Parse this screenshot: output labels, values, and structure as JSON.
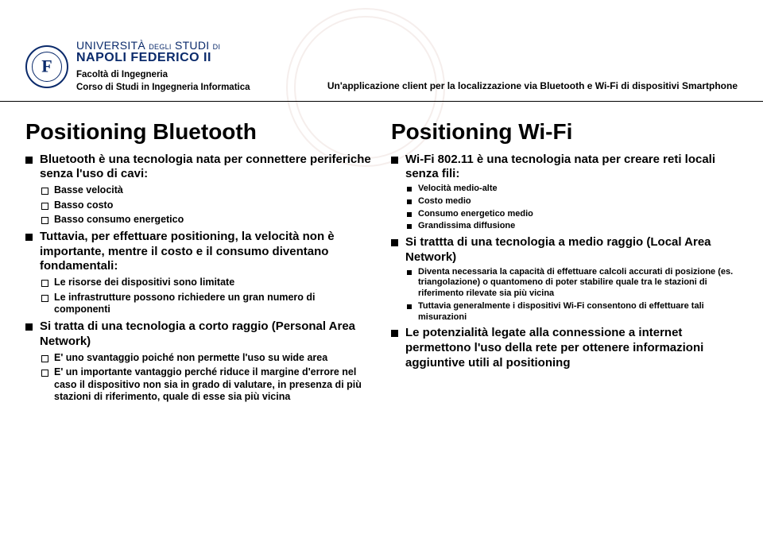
{
  "header": {
    "uni_line1_a": "UNIVERSITÀ",
    "uni_line1_b": "DEGLI",
    "uni_line1_c": "STUDI",
    "uni_line1_d": "DI",
    "uni_line2": "NAPOLI FEDERICO II",
    "faculty_line1": "Facoltà di Ingegneria",
    "faculty_line2": "Corso di Studi in Ingegneria Informatica",
    "app_title": "Un'applicazione client per la localizzazione via Bluetooth e Wi-Fi di dispositivi Smartphone"
  },
  "left": {
    "title": "Positioning Bluetooth",
    "p1": "Bluetooth è una tecnologia nata per connettere periferiche senza l'uso di cavi:",
    "p1_items": [
      "Basse velocità",
      "Basso costo",
      "Basso consumo energetico"
    ],
    "p2": "Tuttavia, per effettuare positioning, la velocità non è importante, mentre il costo e il consumo diventano fondamentali:",
    "p2_items": [
      "Le risorse dei dispositivi sono limitate",
      "Le infrastrutture possono richiedere un gran numero di componenti"
    ],
    "p3": "Si tratta di una tecnologia a corto raggio (Personal Area Network)",
    "p3_items": [
      "E' uno svantaggio poiché non permette l'uso su wide area",
      "E' un importante vantaggio perché riduce il margine d'errore nel caso il dispositivo non sia in grado di valutare, in presenza di più  stazioni di riferimento, quale di esse sia più vicina"
    ]
  },
  "right": {
    "title": "Positioning Wi-Fi",
    "p1": "Wi-Fi 802.11 è una tecnologia nata per creare reti locali senza fili:",
    "p1_items": [
      "Velocità medio-alte",
      "Costo medio",
      "Consumo energetico medio",
      "Grandissima diffusione"
    ],
    "p2": "Si trattta di una tecnologia a medio raggio (Local Area Network)",
    "p2_items": [
      "Diventa necessaria la capacità di effettuare calcoli accurati di posizione (es. triangolazione)  o quantomeno di poter stabilire quale tra le stazioni di riferimento rilevate sia più vicina",
      "Tuttavia generalmente i dispositivi Wi-Fi consentono di effettuare tali misurazioni"
    ],
    "p3": "Le potenzialità legate alla connessione a internet permettono l'uso della rete per ottenere informazioni aggiuntive utili al positioning"
  },
  "style": {
    "colors": {
      "text": "#000000",
      "brand": "#0a2a6b",
      "watermark": "#e8d5d0",
      "background": "#ffffff"
    },
    "fonts": {
      "title_size": 28,
      "l1_size": 15,
      "l2_size": 12.5,
      "l3_size": 11,
      "header_right_size": 12,
      "faculty_size": 11.5
    }
  }
}
